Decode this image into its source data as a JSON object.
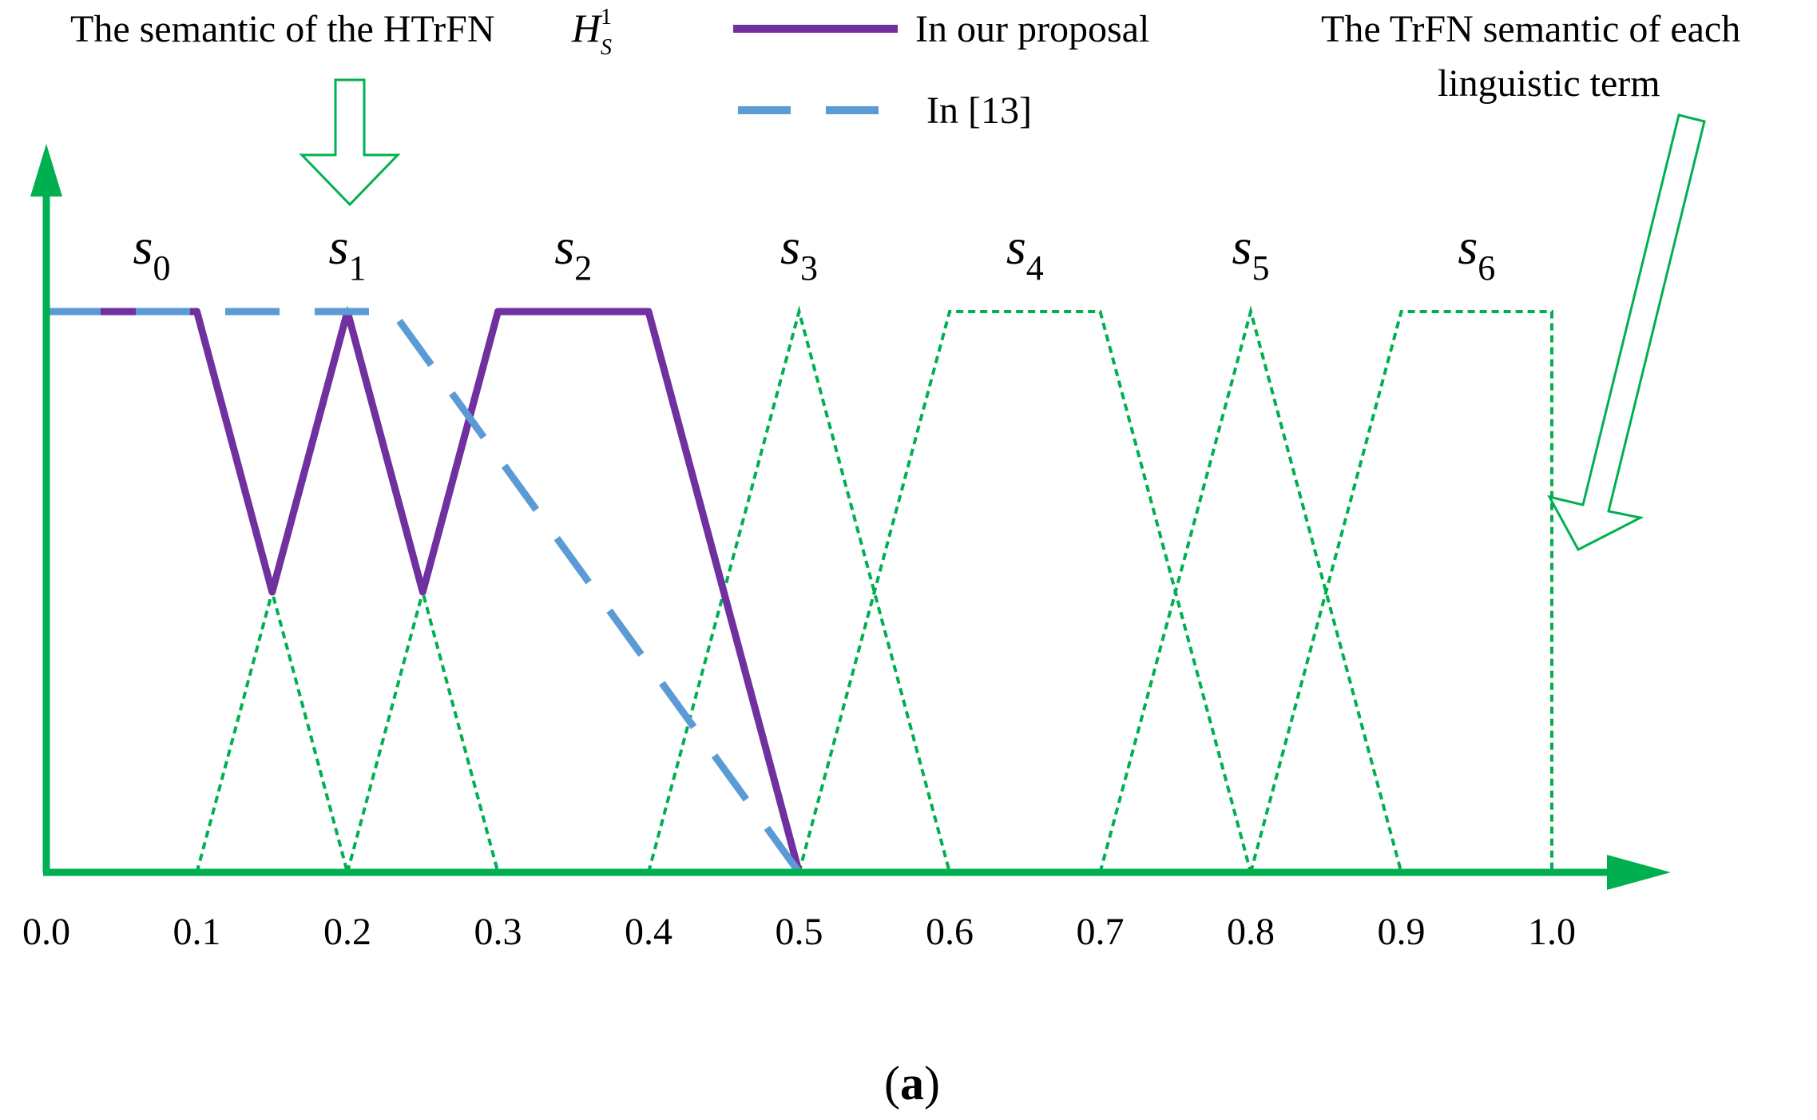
{
  "chart_data": {
    "type": "line",
    "caption": "a",
    "annotations": {
      "htrfn_label": "The semantic of the HTrFN",
      "htrfn_symbol": "H",
      "htrfn_sup": "1",
      "htrfn_sub": "S",
      "trfn_label_line1": "The TrFN semantic of each",
      "trfn_label_line2": "linguistic term"
    },
    "legend": [
      {
        "label": "In our proposal",
        "color": "#7030a0",
        "style": "solid"
      },
      {
        "label": "In [13]",
        "color": "#5b9bd5",
        "style": "dashed"
      }
    ],
    "x_ticks": [
      "0.0",
      "0.1",
      "0.2",
      "0.3",
      "0.4",
      "0.5",
      "0.6",
      "0.7",
      "0.8",
      "0.9",
      "1.0"
    ],
    "xlim": [
      0,
      1.0
    ],
    "ylim": [
      0,
      1
    ],
    "terms": [
      {
        "base": "s",
        "sub": "0",
        "x": 0.07
      },
      {
        "base": "s",
        "sub": "1",
        "x": 0.2
      },
      {
        "base": "s",
        "sub": "2",
        "x": 0.35
      },
      {
        "base": "s",
        "sub": "3",
        "x": 0.5
      },
      {
        "base": "s",
        "sub": "4",
        "x": 0.65
      },
      {
        "base": "s",
        "sub": "5",
        "x": 0.8
      },
      {
        "base": "s",
        "sub": "6",
        "x": 0.95
      }
    ],
    "term_trfns": [
      [
        0,
        0,
        0.1,
        0.2
      ],
      [
        0.1,
        0.2,
        0.2,
        0.3
      ],
      [
        0.2,
        0.3,
        0.4,
        0.5
      ],
      [
        0.4,
        0.5,
        0.5,
        0.6
      ],
      [
        0.5,
        0.6,
        0.7,
        0.8
      ],
      [
        0.7,
        0.8,
        0.8,
        0.9
      ],
      [
        0.8,
        0.9,
        1.0,
        1.0
      ]
    ],
    "series": [
      {
        "name": "In our proposal",
        "x": [
          0.0,
          0.1,
          0.15,
          0.2,
          0.25,
          0.3,
          0.4,
          0.5
        ],
        "y": [
          1,
          1,
          0.5,
          1,
          0.5,
          1,
          1,
          0
        ]
      },
      {
        "name": "In [13]",
        "x": [
          0.0,
          0.23,
          0.5
        ],
        "y": [
          1,
          1,
          0
        ]
      }
    ],
    "colors": {
      "axis": "#00b050",
      "terms": "#00b050",
      "proposal": "#7030a0",
      "ref13": "#5b9bd5"
    }
  }
}
